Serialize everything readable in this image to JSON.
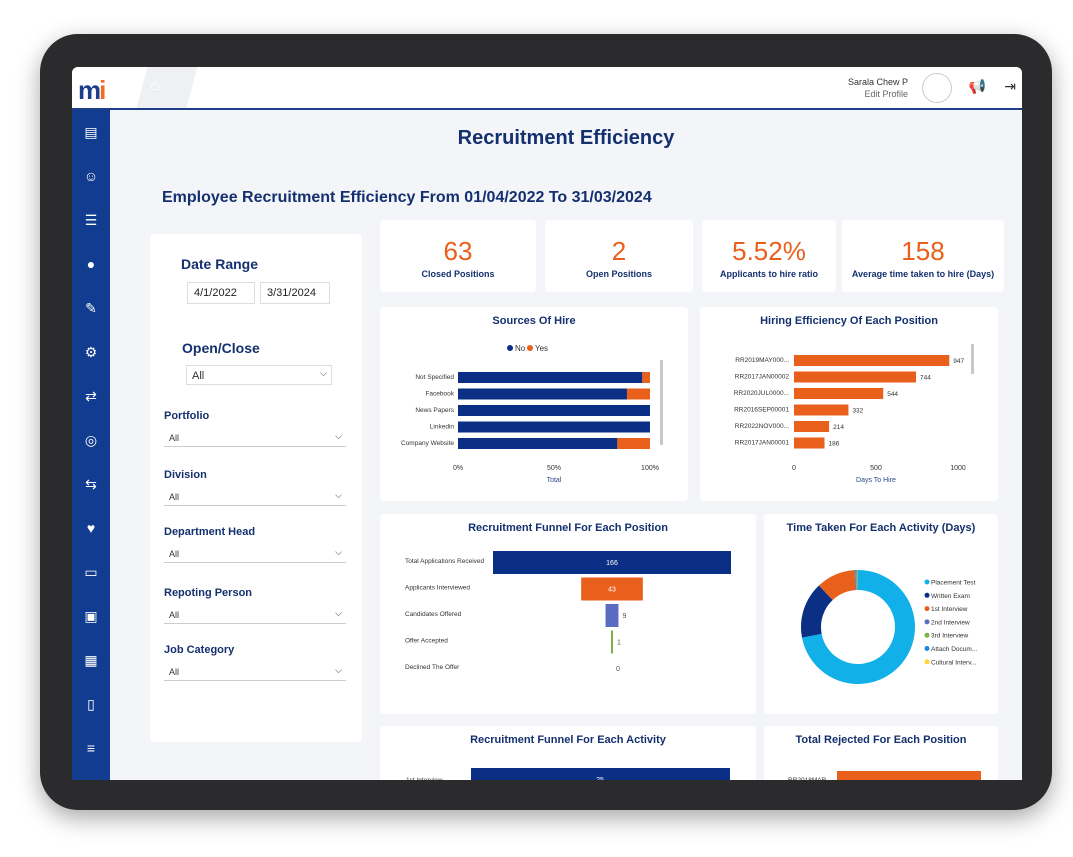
{
  "header": {
    "logo": "mi",
    "user_name": "Sarala Chew P",
    "edit_profile": "Edit Profile"
  },
  "page_title": "Recruitment Efficiency",
  "subtitle": "Employee Recruitment Efficiency From 01/04/2022 To 31/03/2024",
  "filters": {
    "date_range_label": "Date Range",
    "date_from": "4/1/2022",
    "date_to": "3/31/2024",
    "open_close_label": "Open/Close",
    "open_close_value": "All",
    "dropdowns": [
      {
        "label": "Portfolio",
        "value": "All"
      },
      {
        "label": "Division",
        "value": "All"
      },
      {
        "label": "Department Head",
        "value": "All"
      },
      {
        "label": "Repoting Person",
        "value": "All"
      },
      {
        "label": "Job Category",
        "value": "All"
      }
    ]
  },
  "kpis": [
    {
      "value": "63",
      "label": "Closed Positions"
    },
    {
      "value": "2",
      "label": "Open Positions"
    },
    {
      "value": "5.52%",
      "label": "Applicants to hire ratio"
    },
    {
      "value": "158",
      "label": "Average time taken to hire (Days)"
    }
  ],
  "colors": {
    "navy": "#0b2f85",
    "orange": "#e8601c",
    "sidebar": "#123c8f"
  },
  "chart_data": [
    {
      "type": "bar",
      "title": "Sources Of Hire",
      "orientation": "horizontal-stacked-100",
      "categories": [
        "Not Specified",
        "Facebook",
        "News Papers",
        "Linkedin",
        "Company Website"
      ],
      "series": [
        {
          "name": "No",
          "values": [
            96,
            88,
            100,
            100,
            83
          ]
        },
        {
          "name": "Yes",
          "values": [
            4,
            12,
            0,
            0,
            17
          ]
        }
      ],
      "xlabel": "Total",
      "xticks": [
        "0%",
        "50%",
        "100%"
      ],
      "legend": "top"
    },
    {
      "type": "bar",
      "title": "Hiring Efficiency Of Each Position",
      "orientation": "horizontal",
      "categories": [
        "RR2019MAY000...",
        "RR2017JAN00002",
        "RR2020JUL0000...",
        "RR2016SEP00001",
        "RR2022NOV000...",
        "RR2017JAN00001"
      ],
      "values": [
        947,
        744,
        544,
        332,
        214,
        186
      ],
      "xlabel": "Days To Hire",
      "xticks": [
        "0",
        "500",
        "1000"
      ],
      "xlim": [
        0,
        1000
      ]
    },
    {
      "type": "bar",
      "title": "Recruitment Funnel For Each Position",
      "orientation": "funnel",
      "categories": [
        "Total Applications Received",
        "Applicants Interviewed",
        "Candidates Offered",
        "Offer Accepted",
        "Declined The Offer"
      ],
      "values": [
        166,
        43,
        9,
        1,
        0
      ],
      "colors": [
        "#0b2f85",
        "#e8601c",
        "#5a6bc2",
        "#7cb342",
        "#999999"
      ]
    },
    {
      "type": "pie",
      "title": "Time Taken For Each Activity (Days)",
      "donut": true,
      "labels": [
        "Placement Test",
        "Written Exam",
        "1st Interview",
        "2nd Interview",
        "3rd Interview",
        "Attach Docum...",
        "Cultural Interv..."
      ],
      "values": [
        72,
        16,
        11,
        0.3,
        0.3,
        0.3,
        0.1
      ],
      "colors": [
        "#12b0e8",
        "#0b2f85",
        "#e8601c",
        "#5a6bc2",
        "#7cb342",
        "#1e88e5",
        "#fdd835"
      ],
      "legend": "right"
    },
    {
      "type": "bar",
      "title": "Recruitment Funnel For Each Activity",
      "orientation": "funnel",
      "categories": [
        "1st Interview"
      ],
      "values": [
        25
      ]
    },
    {
      "type": "bar",
      "title": "Total Rejected For Each Position",
      "orientation": "horizontal",
      "categories": [
        "RR2018MAR..."
      ]
    }
  ]
}
